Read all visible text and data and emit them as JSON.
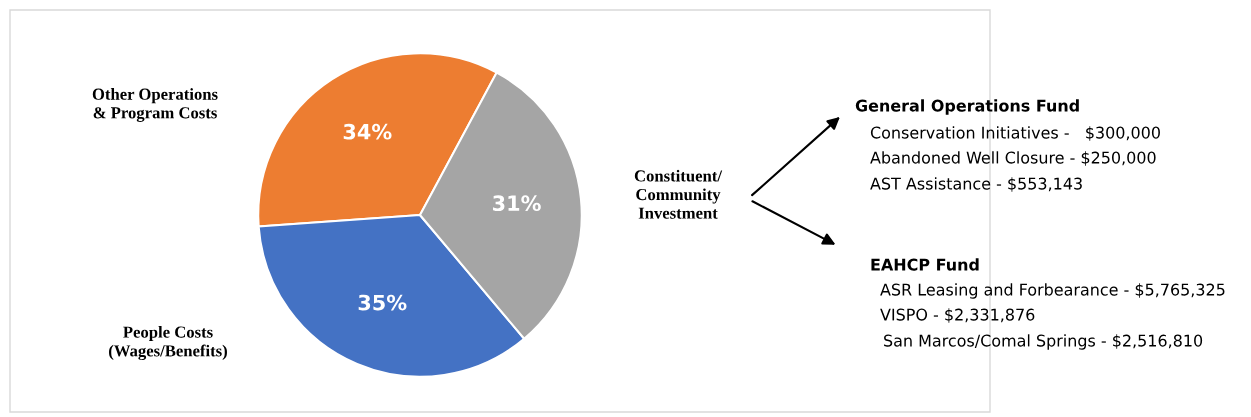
{
  "chart_data": {
    "type": "pie",
    "categories": [
      "Other Operations\n& Program Costs",
      "People Costs\n(Wages/Benefits)",
      "Constituent/\nCommunity\nInvestment"
    ],
    "values": [
      34,
      35,
      31
    ],
    "value_labels": [
      "34%",
      "35%",
      "31%"
    ],
    "colors": [
      "#ed7d31",
      "#4472c4",
      "#a5a5a5"
    ],
    "annotations": [
      "General Operations Fund",
      "Conservation Initiatives -   $300,000",
      "Abandoned Well Closure - $250,000",
      "AST Assistance - $553,143",
      "EAHCP Fund",
      "ASR Leasing and Forbearance - $5,765,325",
      "VISPO - $2,331,876",
      "San Marcos/Comal Springs - $2,516,810"
    ]
  }
}
